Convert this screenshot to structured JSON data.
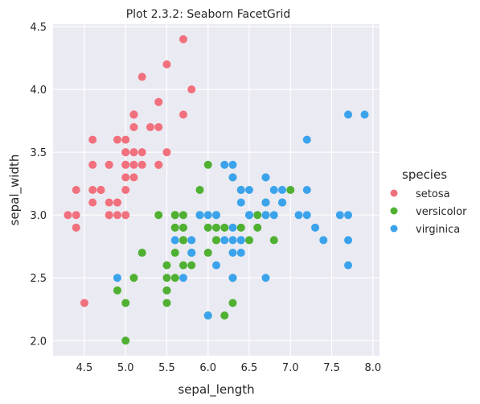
{
  "chart_data": {
    "type": "scatter",
    "title": "Plot 2.3.2: Seaborn FacetGrid",
    "xlabel": "sepal_length",
    "ylabel": "sepal_width",
    "xlim": [
      4.12,
      8.08
    ],
    "ylim": [
      1.88,
      4.52
    ],
    "xticks": [
      "4.5",
      "5.0",
      "5.5",
      "6.0",
      "6.5",
      "7.0",
      "7.5",
      "8.0"
    ],
    "yticks": [
      "2.0",
      "2.5",
      "3.0",
      "3.5",
      "4.0",
      "4.5"
    ],
    "grid": true,
    "background": "#eaeaf2",
    "legend": {
      "title": "species",
      "position": "right"
    },
    "series": [
      {
        "name": "setosa",
        "color": "#f1707d",
        "points": [
          [
            5.1,
            3.5
          ],
          [
            4.9,
            3.0
          ],
          [
            4.7,
            3.2
          ],
          [
            4.6,
            3.1
          ],
          [
            5.0,
            3.6
          ],
          [
            5.4,
            3.9
          ],
          [
            4.6,
            3.4
          ],
          [
            5.0,
            3.4
          ],
          [
            4.4,
            2.9
          ],
          [
            4.9,
            3.1
          ],
          [
            5.4,
            3.7
          ],
          [
            4.8,
            3.4
          ],
          [
            4.8,
            3.0
          ],
          [
            4.3,
            3.0
          ],
          [
            5.8,
            4.0
          ],
          [
            5.7,
            4.4
          ],
          [
            5.4,
            3.9
          ],
          [
            5.1,
            3.5
          ],
          [
            5.7,
            3.8
          ],
          [
            5.1,
            3.8
          ],
          [
            5.4,
            3.4
          ],
          [
            5.1,
            3.7
          ],
          [
            4.6,
            3.6
          ],
          [
            5.1,
            3.3
          ],
          [
            4.8,
            3.4
          ],
          [
            5.0,
            3.0
          ],
          [
            5.0,
            3.4
          ],
          [
            5.2,
            3.5
          ],
          [
            5.2,
            3.4
          ],
          [
            4.7,
            3.2
          ],
          [
            4.8,
            3.1
          ],
          [
            5.4,
            3.4
          ],
          [
            5.2,
            4.1
          ],
          [
            5.5,
            4.2
          ],
          [
            4.9,
            3.1
          ],
          [
            5.0,
            3.2
          ],
          [
            5.5,
            3.5
          ],
          [
            4.9,
            3.6
          ],
          [
            4.4,
            3.0
          ],
          [
            5.1,
            3.4
          ],
          [
            5.0,
            3.5
          ],
          [
            4.5,
            2.3
          ],
          [
            4.4,
            3.2
          ],
          [
            5.0,
            3.5
          ],
          [
            5.1,
            3.8
          ],
          [
            4.8,
            3.0
          ],
          [
            5.1,
            3.8
          ],
          [
            4.6,
            3.2
          ],
          [
            5.3,
            3.7
          ],
          [
            5.0,
            3.3
          ]
        ]
      },
      {
        "name": "versicolor",
        "color": "#4fb031",
        "points": [
          [
            7.0,
            3.2
          ],
          [
            6.4,
            3.2
          ],
          [
            6.9,
            3.1
          ],
          [
            5.5,
            2.3
          ],
          [
            6.5,
            2.8
          ],
          [
            5.7,
            2.8
          ],
          [
            6.3,
            3.3
          ],
          [
            4.9,
            2.4
          ],
          [
            6.6,
            2.9
          ],
          [
            5.2,
            2.7
          ],
          [
            5.0,
            2.0
          ],
          [
            5.9,
            3.0
          ],
          [
            6.0,
            2.2
          ],
          [
            6.1,
            2.9
          ],
          [
            5.6,
            2.9
          ],
          [
            6.7,
            3.1
          ],
          [
            5.6,
            3.0
          ],
          [
            5.8,
            2.7
          ],
          [
            6.2,
            2.2
          ],
          [
            5.6,
            2.5
          ],
          [
            5.9,
            3.2
          ],
          [
            6.1,
            2.8
          ],
          [
            6.3,
            2.5
          ],
          [
            6.1,
            2.8
          ],
          [
            6.4,
            2.9
          ],
          [
            6.6,
            3.0
          ],
          [
            6.8,
            2.8
          ],
          [
            6.7,
            3.0
          ],
          [
            6.0,
            2.9
          ],
          [
            5.7,
            2.6
          ],
          [
            5.5,
            2.4
          ],
          [
            5.5,
            2.4
          ],
          [
            5.8,
            2.7
          ],
          [
            6.0,
            2.7
          ],
          [
            5.4,
            3.0
          ],
          [
            6.0,
            3.4
          ],
          [
            6.7,
            3.1
          ],
          [
            6.3,
            2.3
          ],
          [
            5.6,
            3.0
          ],
          [
            5.5,
            2.5
          ],
          [
            5.5,
            2.6
          ],
          [
            6.1,
            3.0
          ],
          [
            5.8,
            2.6
          ],
          [
            5.0,
            2.3
          ],
          [
            5.6,
            2.7
          ],
          [
            5.7,
            3.0
          ],
          [
            5.7,
            2.9
          ],
          [
            6.2,
            2.9
          ],
          [
            5.1,
            2.5
          ],
          [
            5.7,
            2.8
          ]
        ]
      },
      {
        "name": "virginica",
        "color": "#3ba3ec",
        "points": [
          [
            6.3,
            3.3
          ],
          [
            5.8,
            2.7
          ],
          [
            7.1,
            3.0
          ],
          [
            6.3,
            2.9
          ],
          [
            6.5,
            3.0
          ],
          [
            7.6,
            3.0
          ],
          [
            4.9,
            2.5
          ],
          [
            7.3,
            2.9
          ],
          [
            6.7,
            2.5
          ],
          [
            7.2,
            3.6
          ],
          [
            6.5,
            3.2
          ],
          [
            6.4,
            2.7
          ],
          [
            6.8,
            3.0
          ],
          [
            5.7,
            2.5
          ],
          [
            5.8,
            2.8
          ],
          [
            6.4,
            3.2
          ],
          [
            6.5,
            3.0
          ],
          [
            7.7,
            3.8
          ],
          [
            7.7,
            2.6
          ],
          [
            6.0,
            2.2
          ],
          [
            6.9,
            3.2
          ],
          [
            5.6,
            2.8
          ],
          [
            7.7,
            2.8
          ],
          [
            6.3,
            2.7
          ],
          [
            6.7,
            3.3
          ],
          [
            7.2,
            3.2
          ],
          [
            6.2,
            2.8
          ],
          [
            6.1,
            3.0
          ],
          [
            6.4,
            2.8
          ],
          [
            7.2,
            3.0
          ],
          [
            7.4,
            2.8
          ],
          [
            7.9,
            3.8
          ],
          [
            6.4,
            2.8
          ],
          [
            6.3,
            2.8
          ],
          [
            6.1,
            2.6
          ],
          [
            7.7,
            3.0
          ],
          [
            6.3,
            3.4
          ],
          [
            6.4,
            3.1
          ],
          [
            6.0,
            3.0
          ],
          [
            6.9,
            3.1
          ],
          [
            6.7,
            3.1
          ],
          [
            6.9,
            3.1
          ],
          [
            5.8,
            2.7
          ],
          [
            6.8,
            3.2
          ],
          [
            6.7,
            3.3
          ],
          [
            6.7,
            3.0
          ],
          [
            6.3,
            2.5
          ],
          [
            6.5,
            3.0
          ],
          [
            6.2,
            3.4
          ],
          [
            5.9,
            3.0
          ]
        ]
      }
    ]
  }
}
